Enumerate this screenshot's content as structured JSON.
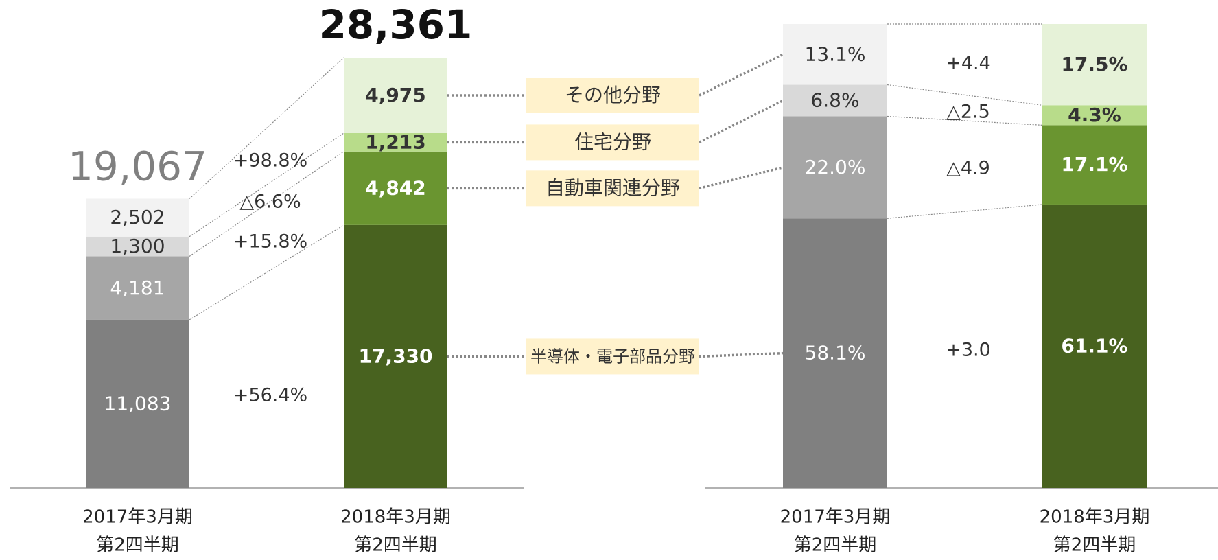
{
  "chart_data": [
    {
      "type": "bar",
      "stacked": true,
      "categories": [
        [
          "2017年3月期",
          "第2四半期"
        ],
        [
          "2018年3月期",
          "第2四半期"
        ]
      ],
      "colors": [
        [
          "#808080",
          "#a6a6a6",
          "#d9d9d9",
          "#f2f2f2"
        ],
        [
          "#48621f",
          "#6a9530",
          "#b8dc8a",
          "#e6f2d8"
        ]
      ],
      "series": [
        {
          "name": "半導体・電子部品分野",
          "values": [
            11083,
            17330
          ],
          "value_labels": [
            "11,083",
            "17,330"
          ]
        },
        {
          "name": "自動車関連分野",
          "values": [
            4181,
            4842
          ],
          "value_labels": [
            "4,181",
            "4,842"
          ]
        },
        {
          "name": "住宅分野",
          "values": [
            1300,
            1213
          ],
          "value_labels": [
            "1,300",
            "1,213"
          ]
        },
        {
          "name": "その他分野",
          "values": [
            2502,
            4975
          ],
          "value_labels": [
            "2,502",
            "4,975"
          ]
        }
      ],
      "totals": [
        19067,
        28361
      ],
      "total_labels": [
        "19,067",
        "28,361"
      ],
      "changes": [
        56.4,
        15.8,
        -6.6,
        98.8
      ],
      "change_labels": [
        "+56.4%",
        "+15.8%",
        "△6.6%",
        "+98.8%"
      ]
    },
    {
      "type": "bar",
      "stacked": true,
      "categories": [
        [
          "2017年3月期",
          "第2四半期"
        ],
        [
          "2018年3月期",
          "第2四半期"
        ]
      ],
      "colors": [
        [
          "#808080",
          "#a6a6a6",
          "#d9d9d9",
          "#f2f2f2"
        ],
        [
          "#48621f",
          "#6a9530",
          "#b8dc8a",
          "#e6f2d8"
        ]
      ],
      "series": [
        {
          "values": [
            58.1,
            61.1
          ],
          "value_labels": [
            "58.1%",
            "61.1%"
          ]
        },
        {
          "values": [
            22.0,
            17.1
          ],
          "value_labels": [
            "22.0%",
            "17.1%"
          ]
        },
        {
          "values": [
            6.8,
            4.3
          ],
          "value_labels": [
            "6.8%",
            "4.3%"
          ]
        },
        {
          "values": [
            13.1,
            17.5
          ],
          "value_labels": [
            "13.1%",
            "17.5%"
          ]
        }
      ],
      "changes": [
        3.0,
        -4.9,
        -2.5,
        4.4
      ],
      "change_labels": [
        "+3.0",
        "△4.9",
        "△2.5",
        "+4.4"
      ]
    }
  ]
}
